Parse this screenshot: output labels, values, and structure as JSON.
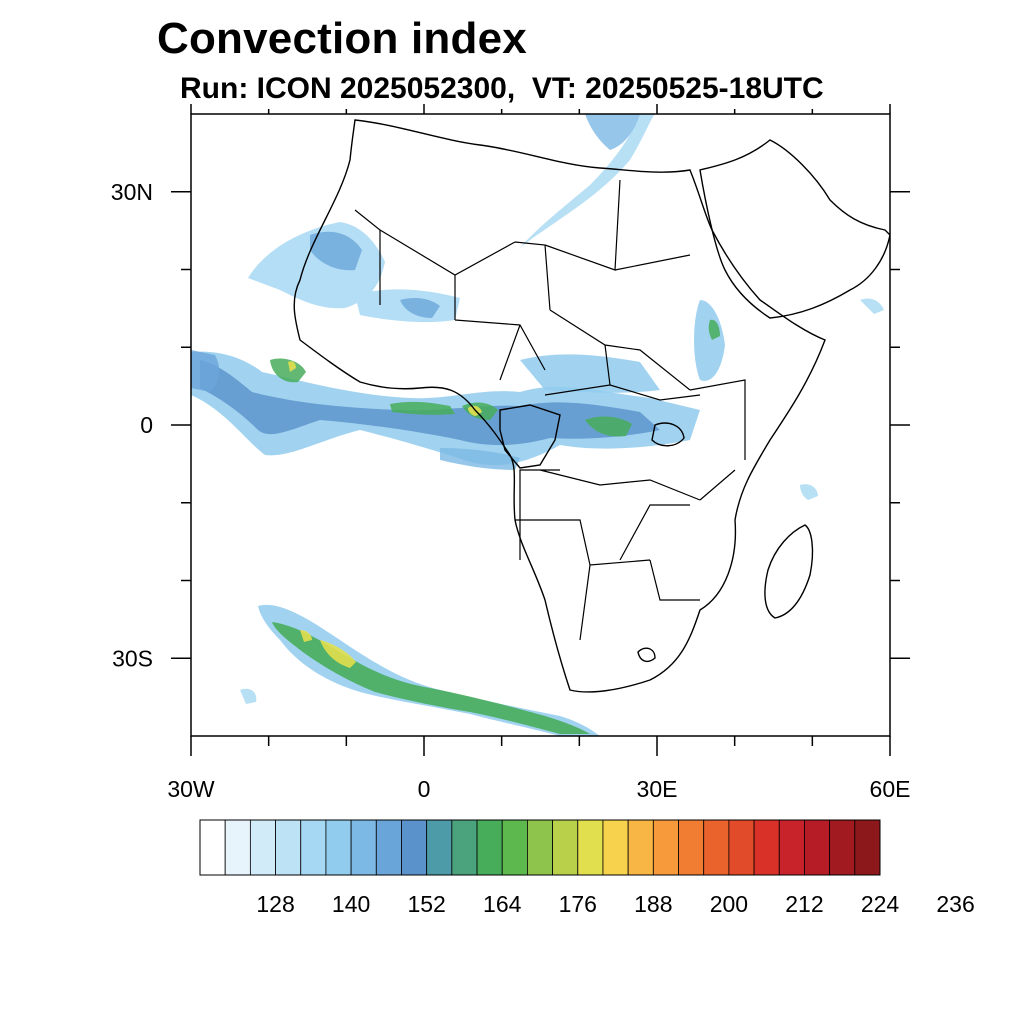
{
  "title": "Convection index",
  "subtitle": "Run: ICON 2025052300,  VT: 20250525-18UTC",
  "map": {
    "region": "Africa",
    "projection": "cylindrical",
    "lon_range": [
      -30,
      60
    ],
    "lat_range": [
      -40,
      40
    ],
    "lon_ticks": [
      {
        "value": -30,
        "label": "30W"
      },
      {
        "value": 0,
        "label": "0"
      },
      {
        "value": 30,
        "label": "30E"
      },
      {
        "value": 60,
        "label": "60E"
      }
    ],
    "lat_ticks": [
      {
        "value": 30,
        "label": "30N"
      },
      {
        "value": 0,
        "label": "0"
      },
      {
        "value": -30,
        "label": "30S"
      }
    ],
    "minor_lon_ticks": [
      -20,
      -10,
      10,
      20,
      40,
      50
    ],
    "minor_lat_ticks": [
      20,
      10,
      -10,
      -20
    ]
  },
  "colorbar": {
    "colors": [
      "#ffffff",
      "#e8f4fb",
      "#d2ebf8",
      "#bde2f6",
      "#a6d8f3",
      "#91cbee",
      "#7cb9e5",
      "#6aa5d9",
      "#5a92cb",
      "#4d9aa8",
      "#4aa37c",
      "#48ad5b",
      "#5db84e",
      "#8fc44c",
      "#b8d04a",
      "#e2df4e",
      "#f7d24c",
      "#f8b645",
      "#f69a3c",
      "#f17d33",
      "#ea632c",
      "#e24b29",
      "#d93028",
      "#c8222a",
      "#b51c26",
      "#a01a20",
      "#8d181c"
    ],
    "tick_labels": [
      "128",
      "140",
      "152",
      "164",
      "176",
      "188",
      "200",
      "212",
      "224",
      "236"
    ]
  }
}
